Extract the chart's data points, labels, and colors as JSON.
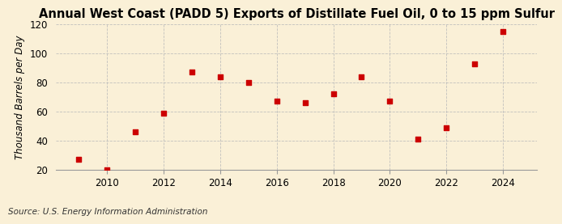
{
  "title": "Annual West Coast (PADD 5) Exports of Distillate Fuel Oil, 0 to 15 ppm Sulfur",
  "ylabel": "Thousand Barrels per Day",
  "source": "Source: U.S. Energy Information Administration",
  "years": [
    2009,
    2010,
    2011,
    2012,
    2013,
    2014,
    2015,
    2016,
    2017,
    2018,
    2019,
    2020,
    2021,
    2022,
    2023,
    2024
  ],
  "values": [
    27,
    20,
    46,
    59,
    87,
    84,
    80,
    67,
    66,
    72,
    84,
    67,
    41,
    49,
    93,
    115
  ],
  "marker_color": "#CC0000",
  "background_color": "#FAF0D7",
  "grid_color": "#BBBBBB",
  "ylim": [
    20,
    120
  ],
  "yticks": [
    20,
    40,
    60,
    80,
    100,
    120
  ],
  "xticks": [
    2010,
    2012,
    2014,
    2016,
    2018,
    2020,
    2022,
    2024
  ],
  "xlim": [
    2008.2,
    2025.2
  ],
  "title_fontsize": 10.5,
  "label_fontsize": 8.5,
  "tick_fontsize": 8.5,
  "source_fontsize": 7.5,
  "marker_size": 20
}
